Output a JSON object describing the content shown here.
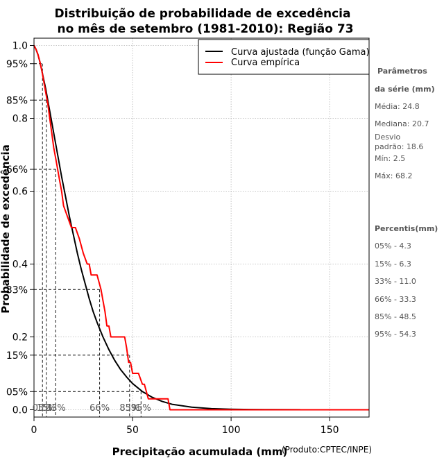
{
  "chart_data": {
    "type": "line",
    "title_line1": "Distribuição de probabilidade de excedência",
    "title_line2": "no mês de setembro (1981-2010): Região 73",
    "xlabel": "Precipitação acumulada (mm)",
    "ylabel": "Probabilidade de excedência",
    "credit": "(Produto:CPTEC/INPE)",
    "xlim": [
      0,
      170
    ],
    "ylim": [
      -0.02,
      1.02
    ],
    "x_ticks": [
      0,
      50,
      100,
      150
    ],
    "x_tick_labels": [
      "0",
      "50",
      "100",
      "150"
    ],
    "y_ticks": [
      {
        "value": 0.0,
        "label": "0.0"
      },
      {
        "value": 0.05,
        "label": "05%"
      },
      {
        "value": 0.15,
        "label": "15%"
      },
      {
        "value": 0.2,
        "label": "0.2"
      },
      {
        "value": 0.33,
        "label": "33%"
      },
      {
        "value": 0.4,
        "label": "0.4"
      },
      {
        "value": 0.6,
        "label": "0.6"
      },
      {
        "value": 0.66,
        "label": "66%"
      },
      {
        "value": 0.8,
        "label": "0.8"
      },
      {
        "value": 0.85,
        "label": "85%"
      },
      {
        "value": 0.95,
        "label": "95%"
      },
      {
        "value": 1.0,
        "label": "1.0"
      }
    ],
    "grid": true,
    "legend": {
      "position": "top-right",
      "entries": [
        {
          "label": "Curva ajustada (função Gama)",
          "color": "#000000"
        },
        {
          "label": "Curva empírica",
          "color": "#ff0000"
        }
      ]
    },
    "series": [
      {
        "name": "Curva ajustada (função Gama)",
        "color": "#000000",
        "x": [
          0,
          1,
          2,
          3,
          4,
          5,
          6,
          8,
          10,
          12,
          14,
          16,
          18,
          20,
          22,
          24,
          26,
          28,
          30,
          32,
          35,
          38,
          41,
          44,
          47,
          50,
          55,
          60,
          65,
          70,
          80,
          90,
          100,
          110,
          120,
          135
        ],
        "y": [
          1.0,
          0.99,
          0.975,
          0.955,
          0.93,
          0.905,
          0.88,
          0.82,
          0.76,
          0.7,
          0.64,
          0.585,
          0.53,
          0.48,
          0.43,
          0.385,
          0.345,
          0.305,
          0.27,
          0.24,
          0.2,
          0.165,
          0.135,
          0.11,
          0.09,
          0.072,
          0.05,
          0.034,
          0.023,
          0.015,
          0.007,
          0.003,
          0.0015,
          0.0008,
          0.0004,
          0.0001
        ]
      },
      {
        "name": "Curva empírica",
        "color": "#ff0000",
        "x": [
          0,
          1,
          2,
          3,
          4,
          5,
          6,
          7,
          8,
          9,
          10,
          11,
          12,
          13,
          14,
          15,
          17,
          19,
          21,
          23,
          25,
          27,
          28,
          29,
          30,
          31,
          32,
          34,
          35,
          36,
          37,
          38,
          39,
          40,
          41,
          42,
          43,
          44,
          45,
          46,
          47,
          48,
          49,
          50,
          51,
          52,
          53,
          55,
          56,
          58,
          60,
          62,
          64,
          66,
          67,
          68,
          69,
          70,
          90,
          110,
          130,
          150,
          170
        ],
        "y": [
          1.0,
          0.99,
          0.975,
          0.955,
          0.93,
          0.9,
          0.87,
          0.84,
          0.8,
          0.76,
          0.72,
          0.69,
          0.66,
          0.63,
          0.6,
          0.56,
          0.53,
          0.5,
          0.5,
          0.47,
          0.43,
          0.4,
          0.4,
          0.37,
          0.37,
          0.37,
          0.37,
          0.33,
          0.3,
          0.27,
          0.23,
          0.23,
          0.2,
          0.2,
          0.2,
          0.2,
          0.2,
          0.2,
          0.2,
          0.2,
          0.17,
          0.13,
          0.13,
          0.1,
          0.1,
          0.1,
          0.1,
          0.07,
          0.07,
          0.03,
          0.03,
          0.03,
          0.03,
          0.03,
          0.03,
          0.03,
          0.0,
          0.0,
          0.0,
          0.0,
          0.0,
          0.0,
          0.0
        ]
      }
    ],
    "percentile_markers": [
      {
        "label": "05%",
        "x": 4.3,
        "prob": 0.95
      },
      {
        "label": "15%",
        "x": 6.3,
        "prob": 0.85
      },
      {
        "label": "33%",
        "x": 11.0,
        "prob": 0.66
      },
      {
        "label": "66%",
        "x": 33.3,
        "prob": 0.33
      },
      {
        "label": "85%",
        "x": 48.5,
        "prob": 0.15
      },
      {
        "label": "95%",
        "x": 54.3,
        "prob": 0.05
      }
    ],
    "bottom_percent_labels": [
      "05%",
      "15%",
      "33%",
      "66%",
      "85%",
      "95%"
    ]
  },
  "side_panel": {
    "params_title_line1": "Parâmetros",
    "params_title_line2": "da série (mm)",
    "media": "Média: 24.8",
    "mediana": "Mediana: 20.7",
    "desvio_line1": "Desvio",
    "desvio_line2": "padrão: 18.6",
    "min": "Mín: 2.5",
    "max": "Máx: 68.2",
    "percentis_title": "Percentis(mm)",
    "percentis": [
      "05% - 4.3",
      "15% - 6.3",
      "33% - 11.0",
      "66% - 33.3",
      "85% - 48.5",
      "95% - 54.3"
    ]
  }
}
